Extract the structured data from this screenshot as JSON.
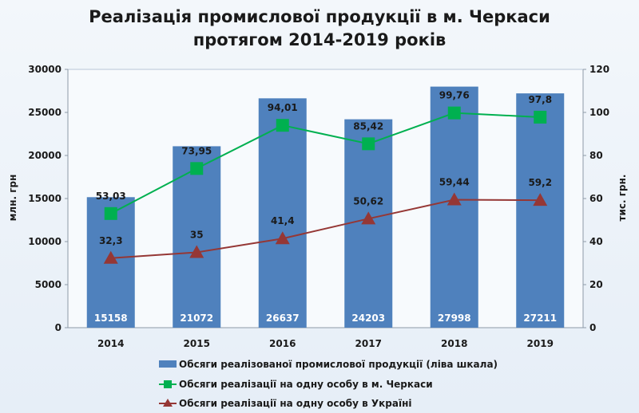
{
  "title_line1": "Реалізація промислової продукції в м. Черкаси",
  "title_line2": "протягом 2014-2019 років",
  "chart_data": {
    "type": "bar",
    "categories": [
      "2014",
      "2015",
      "2016",
      "2017",
      "2018",
      "2019"
    ],
    "ylabel": "млн. грн",
    "y2label": "тис. грн.",
    "ylim": [
      0,
      30000
    ],
    "y2lim": [
      0,
      120
    ],
    "yticks": [
      0,
      5000,
      10000,
      15000,
      20000,
      25000,
      30000
    ],
    "y2ticks": [
      0,
      20,
      40,
      60,
      80,
      100,
      120
    ],
    "grid": false,
    "legend_position": "bottom",
    "series": [
      {
        "name": "Обсяги реалізованої промислової продукції (ліва шкала)",
        "type": "bar",
        "axis": "left",
        "color": "#4f81bd",
        "values": [
          15158,
          21072,
          26637,
          24203,
          27998,
          27211
        ],
        "labels": [
          "15158",
          "21072",
          "26637",
          "24203",
          "27998",
          "27211"
        ]
      },
      {
        "name": "Обсяги реалізації на одну особу в м. Черкаси",
        "type": "line",
        "axis": "right",
        "marker": "square",
        "color": "#00b050",
        "values": [
          53.03,
          73.95,
          94.01,
          85.42,
          99.76,
          97.8
        ],
        "labels": [
          "53,03",
          "73,95",
          "94,01",
          "85,42",
          "99,76",
          "97,8"
        ]
      },
      {
        "name": "Обсяги реалізації на одну особу в Україні",
        "type": "line",
        "axis": "right",
        "marker": "triangle",
        "color": "#953735",
        "values": [
          32.3,
          35,
          41.4,
          50.62,
          59.44,
          59.2
        ],
        "labels": [
          "32,3",
          "35",
          "41,4",
          "50,62",
          "59,44",
          "59,2"
        ]
      }
    ]
  }
}
